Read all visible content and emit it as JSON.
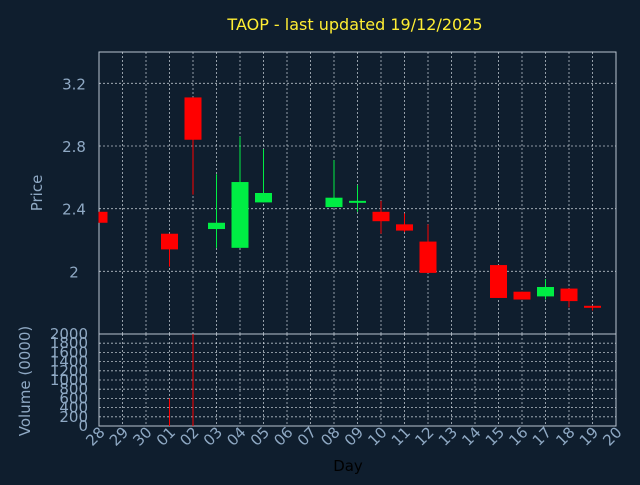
{
  "chart_data": [
    {
      "type": "candlestick",
      "title": "TAOP - last updated 19/12/2025",
      "ylabel": "Price",
      "ylim": [
        1.6,
        3.4
      ],
      "yticks": [
        2,
        2.4,
        2.8,
        3.2
      ],
      "grid": true,
      "categories": [
        "28",
        "29",
        "30",
        "01",
        "02",
        "03",
        "04",
        "05",
        "06",
        "07",
        "08",
        "09",
        "10",
        "11",
        "12",
        "13",
        "14",
        "15",
        "16",
        "17",
        "18",
        "19",
        "20"
      ],
      "candles": [
        {
          "day": "28",
          "open": 2.38,
          "close": 2.31,
          "high": 2.38,
          "low": 2.31
        },
        {
          "day": "01",
          "open": 2.24,
          "close": 2.14,
          "high": 2.24,
          "low": 2.03
        },
        {
          "day": "02",
          "open": 3.11,
          "close": 2.84,
          "high": 3.11,
          "low": 2.49
        },
        {
          "day": "03",
          "open": 2.27,
          "close": 2.31,
          "high": 2.62,
          "low": 2.15
        },
        {
          "day": "04",
          "open": 2.15,
          "close": 2.57,
          "high": 2.86,
          "low": 2.15
        },
        {
          "day": "05",
          "open": 2.44,
          "close": 2.5,
          "high": 2.78,
          "low": 2.44
        },
        {
          "day": "08",
          "open": 2.41,
          "close": 2.47,
          "high": 2.71,
          "low": 2.41
        },
        {
          "day": "09",
          "open": 2.44,
          "close": 2.45,
          "high": 2.55,
          "low": 2.38
        },
        {
          "day": "10",
          "open": 2.38,
          "close": 2.32,
          "high": 2.45,
          "low": 2.24
        },
        {
          "day": "11",
          "open": 2.3,
          "close": 2.26,
          "high": 2.37,
          "low": 2.25
        },
        {
          "day": "12",
          "open": 2.19,
          "close": 1.99,
          "high": 2.3,
          "low": 1.99
        },
        {
          "day": "15",
          "open": 2.04,
          "close": 1.83,
          "high": 2.04,
          "low": 1.83
        },
        {
          "day": "16",
          "open": 1.87,
          "close": 1.82,
          "high": 1.87,
          "low": 1.82
        },
        {
          "day": "17",
          "open": 1.84,
          "close": 1.9,
          "high": 1.95,
          "low": 1.82
        },
        {
          "day": "18",
          "open": 1.89,
          "close": 1.81,
          "high": 1.89,
          "low": 1.77
        },
        {
          "day": "19",
          "open": 1.78,
          "close": 1.77,
          "high": 1.78,
          "low": 1.75
        }
      ],
      "colors": {
        "up": "#00ee44",
        "down": "#ff0000"
      }
    },
    {
      "type": "bar",
      "ylabel": "Volume (0000)",
      "xlabel": "Day",
      "ylim": [
        0,
        2000
      ],
      "yticks": [
        0,
        200,
        400,
        600,
        800,
        1000,
        1200,
        1400,
        1600,
        1800,
        2000
      ],
      "categories": [
        "28",
        "29",
        "30",
        "01",
        "02",
        "03",
        "04",
        "05",
        "06",
        "07",
        "08",
        "09",
        "10",
        "11",
        "12",
        "13",
        "14",
        "15",
        "16",
        "17",
        "18",
        "19",
        "20"
      ],
      "values": [
        0,
        0,
        0,
        600,
        2000,
        0,
        0,
        0,
        0,
        0,
        0,
        0,
        0,
        0,
        0,
        0,
        0,
        0,
        0,
        0,
        0,
        0,
        0
      ],
      "color": "#ff0000"
    }
  ]
}
